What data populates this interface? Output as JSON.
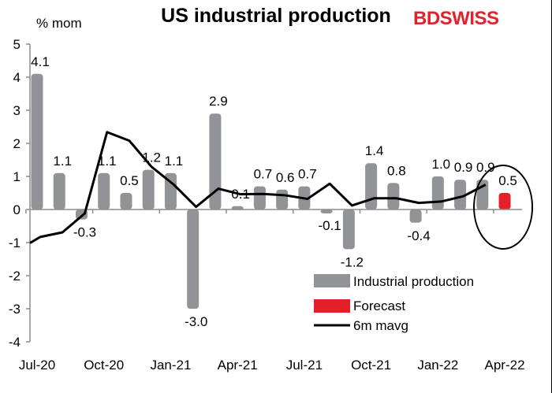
{
  "title": "US industrial production",
  "unit_label": "% mom",
  "logo": "BDSWISS",
  "chart_data": {
    "type": "bar",
    "title": "US industrial production",
    "ylabel": "% mom",
    "ylim": [
      -4,
      5
    ],
    "yticks": [
      5,
      4,
      3,
      2,
      1,
      0,
      -1,
      -2,
      -3,
      -4
    ],
    "categories": [
      "Jul-20",
      "Aug-20",
      "Sep-20",
      "Oct-20",
      "Nov-20",
      "Dec-20",
      "Jan-21",
      "Feb-21",
      "Mar-21",
      "Apr-21",
      "May-21",
      "Jun-21",
      "Jul-21",
      "Aug-21",
      "Sep-21",
      "Oct-21",
      "Nov-21",
      "Dec-21",
      "Jan-22",
      "Feb-22",
      "Mar-22",
      "Apr-22"
    ],
    "xtick_labels": [
      "Jul-20",
      "Oct-20",
      "Jan-21",
      "Apr-21",
      "Jul-21",
      "Oct-21",
      "Jan-22",
      "Apr-22"
    ],
    "series": [
      {
        "name": "Industrial production",
        "type": "bar",
        "color": "#929397",
        "values": [
          4.1,
          1.1,
          -0.3,
          1.1,
          0.5,
          1.2,
          1.1,
          -3.0,
          2.9,
          0.1,
          0.7,
          0.6,
          0.7,
          -0.1,
          -1.2,
          1.4,
          0.8,
          -0.4,
          1.0,
          0.9,
          0.9,
          null
        ],
        "labels": [
          "4.1",
          "1.1",
          "-0.3",
          "1.1",
          "0.5",
          "1.2",
          "1.1",
          "-3.0",
          "2.9",
          "0.1",
          "0.7",
          "0.6",
          "0.7",
          "-0.1",
          "-1.2",
          "1.4",
          "0.8",
          "-0.4",
          "1.0",
          "0.9",
          "0.9",
          ""
        ]
      },
      {
        "name": "Forecast",
        "type": "bar",
        "color": "#e5202a",
        "values": [
          null,
          null,
          null,
          null,
          null,
          null,
          null,
          null,
          null,
          null,
          null,
          null,
          null,
          null,
          null,
          null,
          null,
          null,
          null,
          null,
          null,
          0.5
        ],
        "labels": [
          "",
          "",
          "",
          "",
          "",
          "",
          "",
          "",
          "",
          "",
          "",
          "",
          "",
          "",
          "",
          "",
          "",
          "",
          "",
          "",
          "",
          "0.5"
        ]
      },
      {
        "name": "6m mavg",
        "type": "line",
        "color": "#000000",
        "x": [
          "Jun-20",
          "Jul-20",
          "Aug-20",
          "Sep-20",
          "Oct-20",
          "Nov-20",
          "Dec-20",
          "Jan-21",
          "Feb-21",
          "Mar-21",
          "Apr-21",
          "May-21",
          "Jun-21",
          "Jul-21",
          "Aug-21",
          "Sep-21",
          "Oct-21",
          "Nov-21",
          "Dec-21",
          "Jan-22",
          "Feb-22",
          "Mar-22"
        ],
        "values": [
          -1.23,
          -0.83,
          -0.69,
          -0.12,
          2.34,
          2.08,
          1.29,
          0.75,
          0.08,
          0.63,
          0.46,
          0.47,
          0.43,
          0.32,
          0.78,
          0.12,
          0.34,
          0.34,
          0.2,
          0.24,
          0.4,
          0.75
        ]
      }
    ],
    "legend": {
      "placement": "bottom-right",
      "entries": [
        "Industrial production",
        "Forecast",
        "6m mavg"
      ]
    },
    "annotation": "circle around Apr-22 forecast",
    "grid": false
  }
}
